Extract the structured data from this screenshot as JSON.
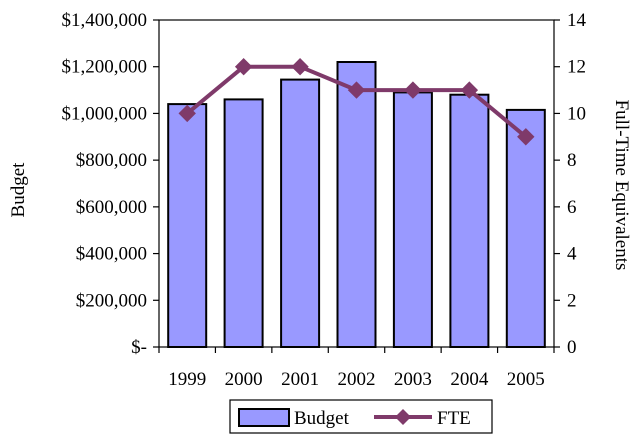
{
  "chart_data": {
    "type": "bar",
    "categories": [
      "1999",
      "2000",
      "2001",
      "2002",
      "2003",
      "2004",
      "2005"
    ],
    "series": [
      {
        "name": "Budget",
        "type": "bar",
        "axis": "left",
        "values": [
          1040000,
          1060000,
          1145000,
          1220000,
          1090000,
          1080000,
          1015000
        ],
        "color": "#9999ff",
        "stroke": "#000000"
      },
      {
        "name": "FTE",
        "type": "line",
        "axis": "right",
        "values": [
          10,
          12,
          12,
          11,
          11,
          11,
          9
        ],
        "color": "#7f3a6a",
        "marker": "diamond"
      }
    ],
    "title": "",
    "ylabel": "Budget",
    "y2label": "Full-Time Equivalents",
    "ylim": [
      0,
      1400000
    ],
    "y2lim": [
      0,
      14
    ],
    "yticks": [
      {
        "value": 0,
        "label": "$-"
      },
      {
        "value": 200000,
        "label": "$200,000"
      },
      {
        "value": 400000,
        "label": "$400,000"
      },
      {
        "value": 600000,
        "label": "$600,000"
      },
      {
        "value": 800000,
        "label": "$800,000"
      },
      {
        "value": 1000000,
        "label": "$1,000,000"
      },
      {
        "value": 1200000,
        "label": "$1,200,000"
      },
      {
        "value": 1400000,
        "label": "$1,400,000"
      }
    ],
    "y2ticks": [
      {
        "value": 0,
        "label": "0"
      },
      {
        "value": 2,
        "label": "2"
      },
      {
        "value": 4,
        "label": "4"
      },
      {
        "value": 6,
        "label": "6"
      },
      {
        "value": 8,
        "label": "8"
      },
      {
        "value": 10,
        "label": "10"
      },
      {
        "value": 12,
        "label": "12"
      },
      {
        "value": 14,
        "label": "14"
      }
    ],
    "grid": false,
    "legend": {
      "position": "bottom",
      "entries": [
        "Budget",
        "FTE"
      ]
    }
  }
}
